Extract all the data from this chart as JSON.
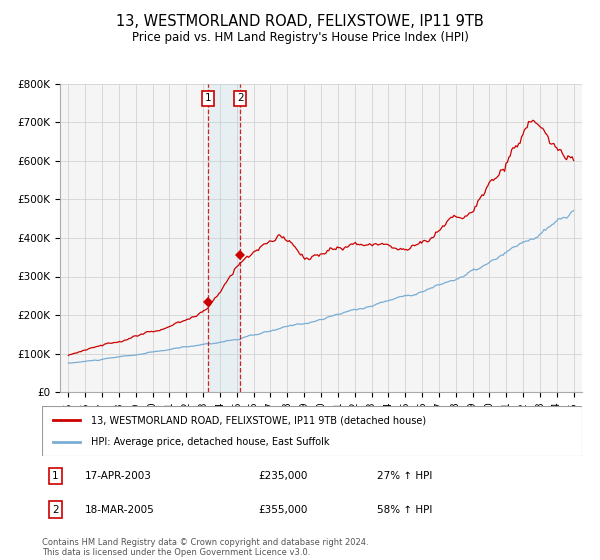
{
  "title": "13, WESTMORLAND ROAD, FELIXSTOWE, IP11 9TB",
  "subtitle": "Price paid vs. HM Land Registry's House Price Index (HPI)",
  "title_fontsize": 10.5,
  "subtitle_fontsize": 8.5,
  "red_line_label": "13, WESTMORLAND ROAD, FELIXSTOWE, IP11 9TB (detached house)",
  "blue_line_label": "HPI: Average price, detached house, East Suffolk",
  "transaction1_date": "17-APR-2003",
  "transaction1_price": 235000,
  "transaction1_hpi": "27% ↑ HPI",
  "transaction2_date": "18-MAR-2005",
  "transaction2_price": 355000,
  "transaction2_hpi": "58% ↑ HPI",
  "footnote": "Contains HM Land Registry data © Crown copyright and database right 2024.\nThis data is licensed under the Open Government Licence v3.0.",
  "ylim": [
    0,
    800000
  ],
  "yticks": [
    0,
    100000,
    200000,
    300000,
    400000,
    500000,
    600000,
    700000,
    800000
  ],
  "ytick_labels": [
    "£0",
    "£100K",
    "£200K",
    "£300K",
    "£400K",
    "£500K",
    "£600K",
    "£700K",
    "£800K"
  ],
  "red_color": "#cc0000",
  "blue_color": "#7aadd4",
  "bg_color": "#f5f5f5",
  "grid_color": "#cccccc",
  "transaction1_year": 2003.29,
  "transaction2_year": 2005.21,
  "shade_x1": 2003.29,
  "shade_x2": 2005.21,
  "xlim_left": 1994.5,
  "xlim_right": 2025.5
}
